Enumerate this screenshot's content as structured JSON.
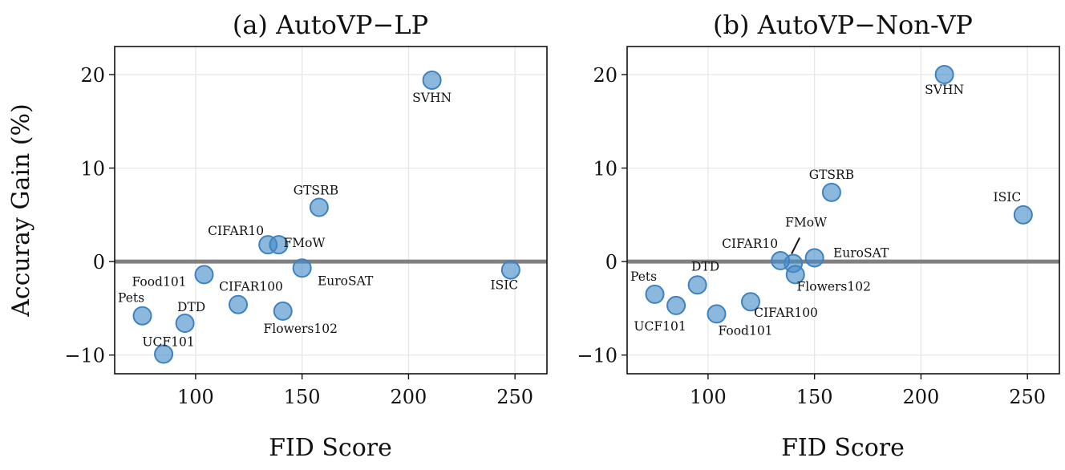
{
  "chart_data": [
    {
      "type": "scatter",
      "title": "(a) AutoVP−LP",
      "xlabel": "FID Score",
      "ylabel": "Accuray Gain (%)",
      "xlim": [
        62,
        265
      ],
      "ylim": [
        -12,
        23
      ],
      "xticks": [
        100,
        150,
        200,
        250
      ],
      "yticks": [
        20,
        10,
        0,
        -10
      ],
      "ytick_labels": [
        "20",
        "10",
        "0",
        "−10"
      ],
      "reference_line_y": 0,
      "points": [
        {
          "label": "SVHN",
          "x": 211,
          "y": 19.4
        },
        {
          "label": "GTSRB",
          "x": 158,
          "y": 5.8
        },
        {
          "label": "CIFAR10",
          "x": 134,
          "y": 1.8
        },
        {
          "label": "FMoW",
          "x": 139,
          "y": 1.8
        },
        {
          "label": "EuroSAT",
          "x": 150,
          "y": -0.7
        },
        {
          "label": "ISIC",
          "x": 248,
          "y": -0.9
        },
        {
          "label": "Food101",
          "x": 104,
          "y": -1.4
        },
        {
          "label": "CIFAR100",
          "x": 120,
          "y": -4.6
        },
        {
          "label": "Flowers102",
          "x": 141,
          "y": -5.3
        },
        {
          "label": "Pets",
          "x": 75,
          "y": -5.8
        },
        {
          "label": "DTD",
          "x": 95,
          "y": -6.6
        },
        {
          "label": "UCF101",
          "x": 85,
          "y": -9.9
        }
      ]
    },
    {
      "type": "scatter",
      "title": "(b) AutoVP−Non-VP",
      "xlabel": "FID Score",
      "ylabel": "",
      "xlim": [
        62,
        265
      ],
      "ylim": [
        -12,
        23
      ],
      "xticks": [
        100,
        150,
        200,
        250
      ],
      "yticks": [
        20,
        10,
        0,
        -10
      ],
      "ytick_labels": [
        "20",
        "10",
        "0",
        "−10"
      ],
      "reference_line_y": 0,
      "points": [
        {
          "label": "SVHN",
          "x": 211,
          "y": 20.0
        },
        {
          "label": "GTSRB",
          "x": 158,
          "y": 7.4
        },
        {
          "label": "ISIC",
          "x": 248,
          "y": 5.0
        },
        {
          "label": "FMoW",
          "x": 140,
          "y": -0.2
        },
        {
          "label": "CIFAR10",
          "x": 134,
          "y": 0.1
        },
        {
          "label": "EuroSAT",
          "x": 150,
          "y": 0.4
        },
        {
          "label": "Flowers102",
          "x": 141,
          "y": -1.4
        },
        {
          "label": "DTD",
          "x": 95,
          "y": -2.5
        },
        {
          "label": "Pets",
          "x": 75,
          "y": -3.5
        },
        {
          "label": "CIFAR100",
          "x": 120,
          "y": -4.3
        },
        {
          "label": "UCF101",
          "x": 85,
          "y": -4.7
        },
        {
          "label": "Food101",
          "x": 104,
          "y": -5.6
        }
      ]
    }
  ]
}
